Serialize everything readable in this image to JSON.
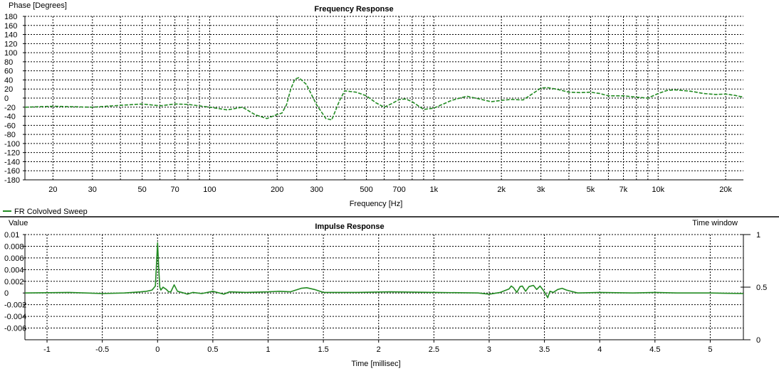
{
  "chart_data": [
    {
      "type": "line",
      "title": "Frequency Response",
      "ylabel": "Phase [Degrees]",
      "xlabel": "Frequency [Hz]",
      "xscale": "log",
      "xlim": [
        15,
        24000
      ],
      "ylim": [
        -180,
        180
      ],
      "yticks": [
        180,
        160,
        140,
        120,
        100,
        80,
        60,
        40,
        20,
        0,
        -20,
        -40,
        -60,
        -80,
        -100,
        -120,
        -140,
        -160,
        -180
      ],
      "ytick_labels": [
        "180",
        "160",
        "140",
        "120",
        "100",
        "80",
        "60",
        "40",
        "20",
        "0",
        "-20",
        "-40",
        "-60",
        "-80",
        "-100",
        "-120",
        "-140",
        "-160",
        "-180"
      ],
      "xgrid": [
        20,
        30,
        40,
        50,
        60,
        70,
        80,
        90,
        100,
        200,
        300,
        400,
        500,
        600,
        700,
        800,
        900,
        1000,
        2000,
        3000,
        4000,
        5000,
        6000,
        7000,
        8000,
        9000,
        10000,
        20000
      ],
      "xtick_values": [
        20,
        30,
        50,
        70,
        100,
        200,
        300,
        500,
        700,
        1000,
        2000,
        3000,
        5000,
        7000,
        10000,
        20000
      ],
      "xtick_labels": [
        "20",
        "30",
        "50",
        "70",
        "100",
        "200",
        "300",
        "500",
        "700",
        "1k",
        "2k",
        "3k",
        "5k",
        "7k",
        "10k",
        "20k"
      ],
      "grid": true,
      "legend_label": "FR Colvolved Sweep",
      "legend_placement": "bottom-left",
      "series": [
        {
          "name": "FR Colvolved Sweep",
          "color": "#228B22",
          "style": "dashed",
          "x": [
            15,
            20,
            30,
            40,
            50,
            60,
            70,
            80,
            100,
            120,
            140,
            160,
            180,
            200,
            210,
            220,
            230,
            240,
            250,
            270,
            300,
            330,
            350,
            380,
            400,
            450,
            500,
            550,
            600,
            650,
            700,
            750,
            800,
            900,
            1000,
            1200,
            1400,
            1600,
            1800,
            2000,
            2200,
            2500,
            2800,
            3000,
            3200,
            3500,
            4000,
            4500,
            5000,
            5500,
            6000,
            7000,
            8000,
            9000,
            10000,
            11000,
            12000,
            14000,
            16000,
            18000,
            20000,
            22000,
            24000
          ],
          "y": [
            -20,
            -18,
            -20,
            -16,
            -13,
            -17,
            -13,
            -14,
            -20,
            -26,
            -20,
            -37,
            -45,
            -36,
            -33,
            -15,
            20,
            42,
            45,
            30,
            -15,
            -45,
            -48,
            -5,
            16,
            13,
            5,
            -10,
            -20,
            -12,
            -3,
            -2,
            -8,
            -25,
            -22,
            -5,
            4,
            -2,
            -8,
            -5,
            -3,
            -4,
            12,
            22,
            23,
            20,
            13,
            12,
            13,
            10,
            5,
            5,
            2,
            0,
            10,
            17,
            18,
            15,
            10,
            8,
            9,
            6,
            2
          ]
        }
      ]
    },
    {
      "type": "line",
      "title": "Impulse Response",
      "ylabel": "Value",
      "xlabel": "Time [millisec]",
      "xlim": [
        -1.2,
        5.3
      ],
      "ylim": [
        -0.008,
        0.01
      ],
      "yticks": [
        0.01,
        0.008,
        0.006,
        0.004,
        0.002,
        0,
        -0.002,
        -0.004,
        -0.006
      ],
      "ytick_labels": [
        "0.01",
        "0.008",
        "0.006",
        "0.004",
        "0.002",
        "0",
        "-0.002",
        "-0.004",
        "-0.006"
      ],
      "xticks": [
        -1,
        -0.5,
        0,
        0.5,
        1,
        1.5,
        2,
        2.5,
        3,
        3.5,
        4,
        4.5,
        5
      ],
      "xtick_labels": [
        "-1",
        "-0.5",
        "0",
        "0.5",
        "1",
        "1.5",
        "2",
        "2.5",
        "3",
        "3.5",
        "4",
        "4.5",
        "5"
      ],
      "grid": true,
      "right_axis_label": "Time window",
      "right_axis_ticks": [
        1,
        0.5,
        0
      ],
      "right_axis_tick_labels": [
        "1",
        "0.5",
        "0"
      ],
      "series": [
        {
          "name": "FR Colvolved Sweep",
          "color": "#228B22",
          "style": "solid",
          "x": [
            -1.2,
            -0.8,
            -0.5,
            -0.3,
            -0.15,
            -0.1,
            -0.05,
            -0.02,
            0,
            0.01,
            0.02,
            0.03,
            0.05,
            0.08,
            0.1,
            0.12,
            0.15,
            0.18,
            0.22,
            0.27,
            0.32,
            0.4,
            0.5,
            0.6,
            0.65,
            0.8,
            1,
            1.1,
            1.2,
            1.3,
            1.35,
            1.42,
            1.5,
            1.8,
            2.1,
            2.5,
            2.9,
            3.0,
            3.1,
            3.18,
            3.2,
            3.22,
            3.25,
            3.28,
            3.3,
            3.33,
            3.36,
            3.4,
            3.43,
            3.46,
            3.5,
            3.53,
            3.55,
            3.58,
            3.62,
            3.66,
            3.7,
            3.8,
            4.0,
            4.3,
            4.5,
            4.7,
            5,
            5.3
          ],
          "y": [
            0,
            0.0001,
            -0.0001,
            0,
            0.0002,
            0.0003,
            0.0005,
            0.0012,
            0.0086,
            0.0045,
            0.001,
            0.0005,
            0.001,
            0.0006,
            0.0002,
            0.0002,
            0.0014,
            0.0003,
            0.0001,
            -0.0002,
            0.0001,
            -0.0001,
            0.0003,
            -0.0002,
            0.0002,
            0.0001,
            0.0002,
            0.0003,
            0.0002,
            0.0008,
            0.0009,
            0.0006,
            0.0001,
            0.0001,
            0.0002,
            0.0001,
            0,
            -0.0002,
            0.0001,
            0.0007,
            0.0012,
            0.0009,
            0.0001,
            0.0011,
            0.0012,
            0.0003,
            0.0011,
            0.0013,
            0.0006,
            0.0012,
            0.0002,
            -0.0008,
            0.0003,
            0.0001,
            0.0006,
            0.0008,
            0.0005,
            0,
            0.0001,
            0,
            0.0001,
            0,
            0,
            -0.0001
          ]
        }
      ]
    }
  ]
}
